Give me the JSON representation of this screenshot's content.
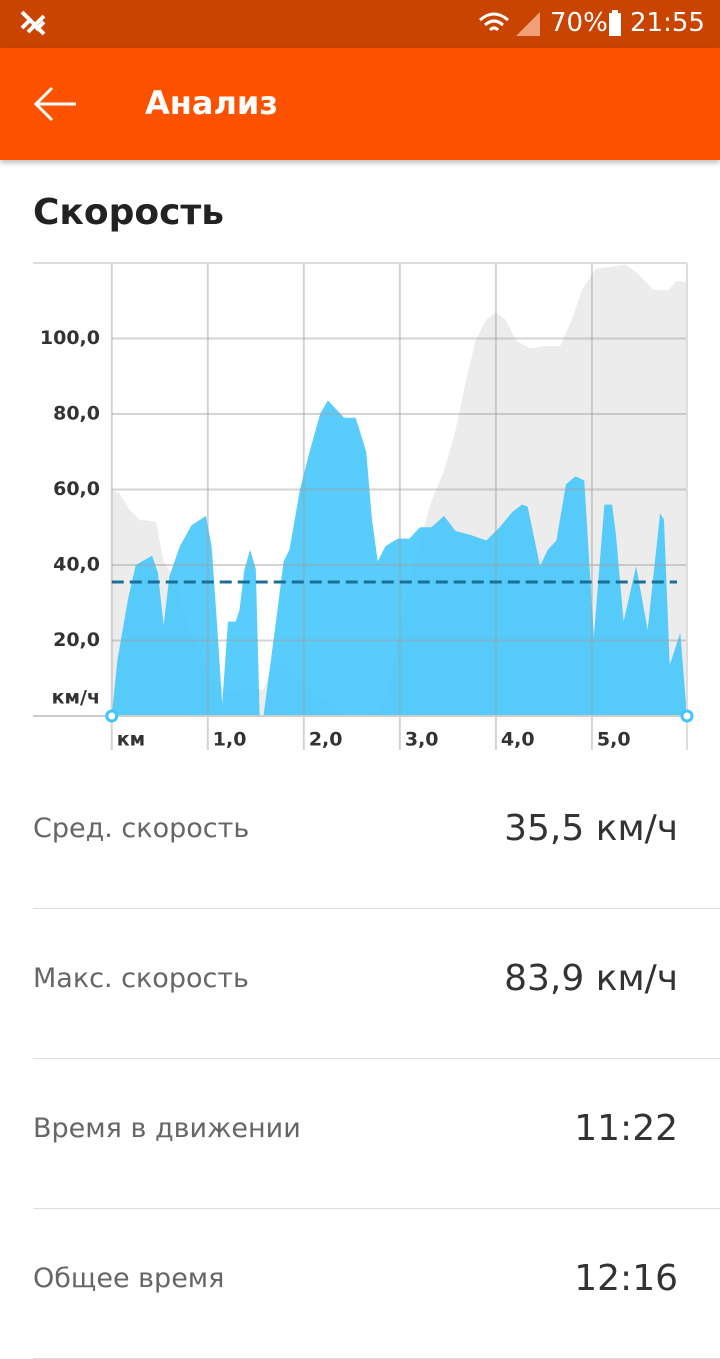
{
  "status_bar": {
    "battery": "70%",
    "time": "21:55"
  },
  "app_bar": {
    "title": "Анализ"
  },
  "section_title": "Скорость",
  "chart_data": {
    "type": "area",
    "xlim": [
      -0.82,
      5.99
    ],
    "ylim": [
      0,
      120
    ],
    "xticks": [
      {
        "value": 0,
        "label": "км"
      },
      {
        "value": 1,
        "label": "1,0"
      },
      {
        "value": 2,
        "label": "2,0"
      },
      {
        "value": 3,
        "label": "3,0"
      },
      {
        "value": 4,
        "label": "4,0"
      },
      {
        "value": 5,
        "label": "5,0"
      }
    ],
    "yticks": [
      {
        "value": 0,
        "label": "км/ч"
      },
      {
        "value": 20,
        "label": "20,0"
      },
      {
        "value": 40,
        "label": "40,0"
      },
      {
        "value": 60,
        "label": "60,0"
      },
      {
        "value": 80,
        "label": "80,0"
      },
      {
        "value": 100,
        "label": "100,0"
      }
    ],
    "grid": true,
    "series": [
      {
        "color": "#ececec",
        "x": [
          0,
          0.08,
          0.19,
          0.29,
          0.46,
          0.54,
          0.67,
          0.79,
          0.92,
          1.04,
          1.17,
          1.29,
          1.42,
          1.58,
          1.71,
          1.85,
          2.06,
          2.27,
          2.48,
          2.79,
          2.9,
          3,
          3.1,
          3.21,
          3.33,
          3.46,
          3.58,
          3.69,
          3.79,
          3.9,
          4,
          4.1,
          4.21,
          4.35,
          4.52,
          4.67,
          4.79,
          4.9,
          5.04,
          5.21,
          5.35,
          5.5,
          5.63,
          5.79,
          5.88,
          5.99
        ],
        "values": [
          60,
          59,
          54.5,
          52,
          51.5,
          41,
          36,
          24,
          17.5,
          11,
          7,
          6.3,
          7.4,
          7,
          14.8,
          12,
          7,
          3,
          0,
          1.6,
          9.5,
          22.8,
          36,
          46.5,
          57,
          65,
          75.7,
          89,
          99.5,
          105,
          107,
          105,
          99.5,
          97.4,
          98,
          98,
          105,
          113,
          118.5,
          119,
          119.6,
          116.7,
          113,
          112.7,
          115.3,
          114.8
        ]
      },
      {
        "color": "#41c5fb",
        "x": [
          0,
          0.06,
          0.17,
          0.25,
          0.42,
          0.48,
          0.54,
          0.6,
          0.71,
          0.83,
          0.92,
          0.98,
          1.04,
          1.1,
          1.15,
          1.21,
          1.29,
          1.33,
          1.38,
          1.44,
          1.5,
          1.54,
          1.58,
          1.71,
          1.79,
          1.85,
          1.96,
          2.06,
          2.17,
          2.25,
          2.31,
          2.42,
          2.54,
          2.65,
          2.71,
          2.77,
          2.85,
          2.98,
          3.1,
          3.21,
          3.33,
          3.46,
          3.58,
          3.73,
          3.9,
          4.04,
          4.17,
          4.27,
          4.33,
          4.46,
          4.54,
          4.63,
          4.73,
          4.83,
          4.92,
          5.02,
          5.13,
          5.21,
          5.25,
          5.33,
          5.46,
          5.58,
          5.71,
          5.75,
          5.81,
          5.92,
          5.99
        ],
        "values": [
          0,
          15,
          31,
          40,
          42.5,
          38,
          24,
          37,
          45,
          50.5,
          52,
          53,
          45,
          23,
          3,
          25,
          25,
          28,
          38.6,
          44,
          39,
          0,
          0,
          25,
          41,
          44,
          60,
          70,
          80,
          83.6,
          82,
          79,
          79,
          70,
          52,
          41,
          45,
          47,
          47,
          50,
          50,
          53,
          49,
          48,
          46.5,
          50,
          54,
          56,
          55.5,
          39.7,
          44,
          46.5,
          61.4,
          63.5,
          62.4,
          21,
          56,
          56,
          48,
          25,
          39.7,
          22.8,
          53.7,
          52,
          13.5,
          22,
          0
        ]
      }
    ],
    "reference_line": 35.5,
    "reference_color": "#1b6f96"
  },
  "stats": [
    {
      "label": "Сред. скорость",
      "value": "35,5 км/ч"
    },
    {
      "label": "Макс. скорость",
      "value": "83,9 км/ч"
    },
    {
      "label": "Время в движении",
      "value": "11:22"
    },
    {
      "label": "Общее время",
      "value": "12:16"
    }
  ]
}
